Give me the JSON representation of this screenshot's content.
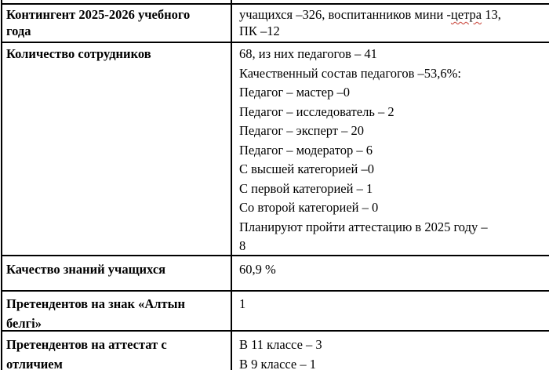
{
  "colors": {
    "background": "#ffffff",
    "text": "#000000",
    "border": "#000000",
    "spellcheck_red": "#c5372c"
  },
  "table": {
    "rows": [
      {
        "label_lines": [
          "Контингент 2025-2026 учебного",
          "года"
        ],
        "value": {
          "line1_before": "учащихся –326, воспитанников мини -",
          "line1_misspelled": "цетра",
          "line1_after": " 13,",
          "line2": "ПК –12"
        }
      },
      {
        "label": "Количество сотрудников",
        "value_lines": [
          "68, из них педагогов – 41",
          "Качественный состав педагогов –53,6%:",
          "Педагог – мастер –0",
          "Педагог – исследователь – 2",
          "Педагог – эксперт – 20",
          "Педагог – модератор – 6",
          "С высшей категорией –0",
          "С первой категорией – 1",
          "Со второй категорией – 0",
          "Планируют пройти аттестацию в 2025 году –",
          "8"
        ]
      },
      {
        "label": "Качество знаний учащихся",
        "value": "60,9 %"
      },
      {
        "label": {
          "line1": "Претендентов на знак «Алтын",
          "line2_misspelled": "белгі",
          "line2_after": "»"
        },
        "value": "1"
      },
      {
        "label_lines": [
          "Претендентов на аттестат с",
          "отличием"
        ],
        "value_lines": [
          "В 11 классе – 3",
          "В 9 классе – 1"
        ]
      }
    ]
  }
}
